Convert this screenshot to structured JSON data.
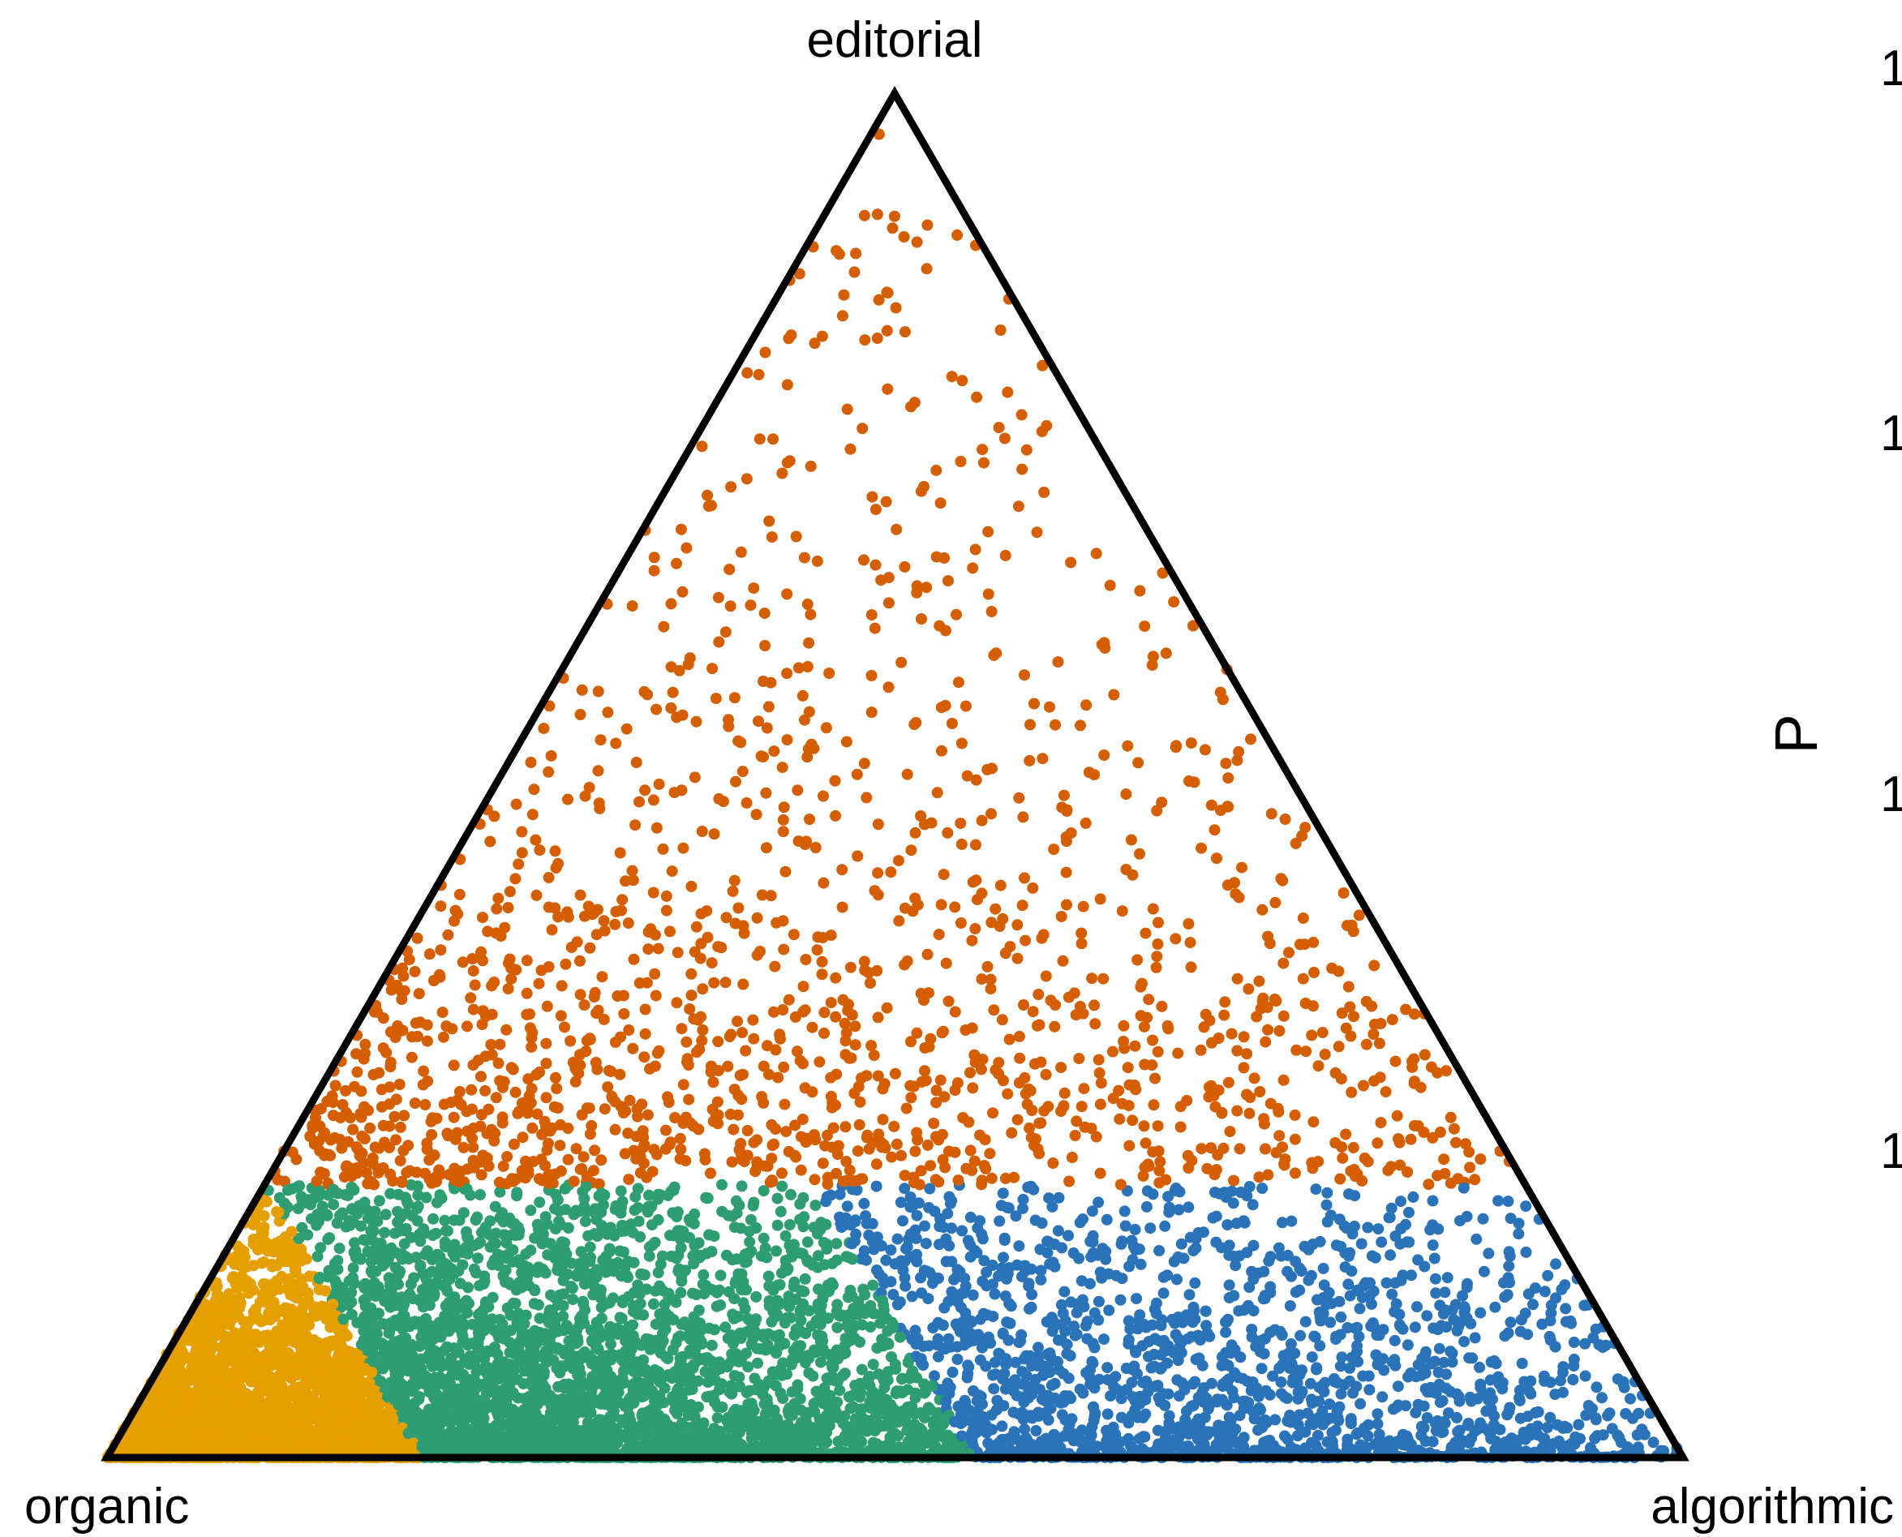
{
  "chart_data": {
    "type": "scatter",
    "subtype": "ternary",
    "title": "",
    "vertices": {
      "top": "editorial",
      "bottom_left": "organic",
      "bottom_right": "algorithmic"
    },
    "legend": {
      "title": "P",
      "placement": "right",
      "tick_labels": [
        "1",
        "1",
        "1",
        "1"
      ]
    },
    "regions": [
      {
        "color": "#E69F00",
        "description": "organic-dominant corner (approx. organic > 0.8)"
      },
      {
        "color": "#2E9E72",
        "description": "organic 0.45–0.8, editorial < 0.2"
      },
      {
        "color": "#2B73B8",
        "description": "algorithmic-leaning, editorial < 0.2"
      },
      {
        "color": "#D55E00",
        "description": "editorial > 0.2"
      }
    ],
    "points_description": "Several thousand points (organic, editorial, algorithmic) with density concentrated near the organic vertex and along the bottom edge; colored by region."
  }
}
